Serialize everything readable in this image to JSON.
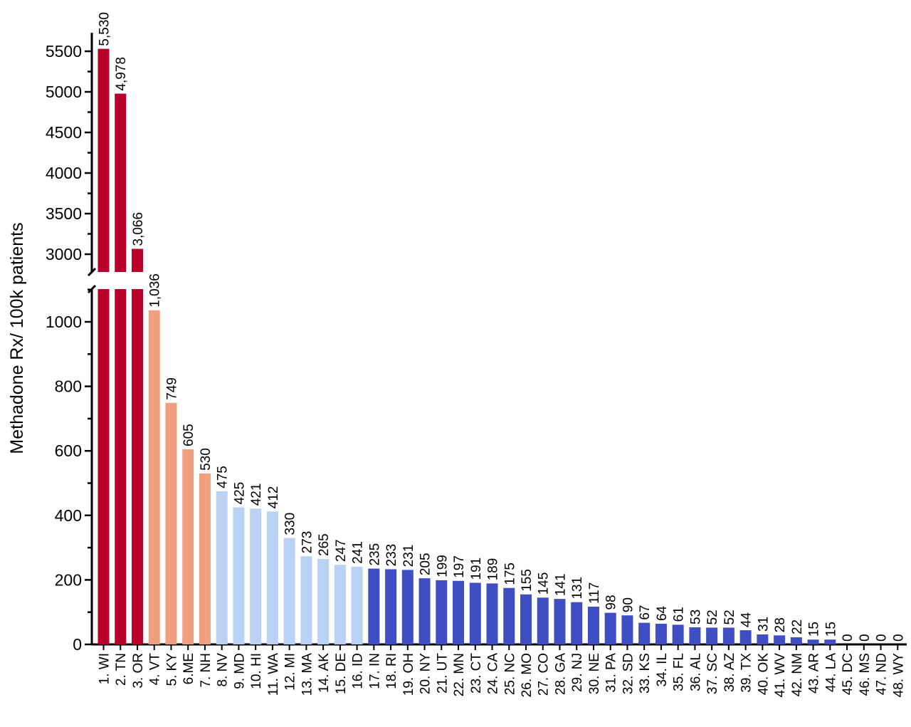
{
  "chart_data": {
    "type": "bar",
    "title": "",
    "xlabel": "",
    "ylabel": "Methadone Rx/ 100k patients",
    "broken_axis": true,
    "ylim_lower": [
      0,
      1100
    ],
    "ylim_upper": [
      2850,
      5650
    ],
    "yticks_lower": [
      0,
      200,
      400,
      600,
      800,
      1000
    ],
    "yticks_upper": [
      3000,
      3500,
      4000,
      4500,
      5000,
      5500
    ],
    "grid": false,
    "categories": [
      "1. WI",
      "2. TN",
      "3. OR",
      "4. VT",
      "5. KY",
      "6.ME",
      "7. NH",
      "8. NV",
      "9. MD",
      "10. HI",
      "11. WA",
      "12. MI",
      "13. MA",
      "14. AK",
      "15. DE",
      "16. ID",
      "17. IN",
      "18. RI",
      "19. OH",
      "20. NY",
      "21. UT",
      "22. MN",
      "23. CT",
      "24. CA",
      "25. NC",
      "26. MO",
      "27. CO",
      "28. GA",
      "29. NJ",
      "30. NE",
      "31. PA",
      "32. SD",
      "33. KS",
      "34. IL",
      "35. FL",
      "36. AL",
      "37. SC",
      "38. AZ",
      "39. TX",
      "40. OK",
      "41. WV",
      "42. NM",
      "43. AR",
      "44. LA",
      "45. DC",
      "46. MS",
      "47. ND",
      "48. WY"
    ],
    "values": [
      5530,
      4978,
      3066,
      1036,
      749,
      605,
      530,
      475,
      425,
      421,
      412,
      330,
      273,
      265,
      247,
      241,
      235,
      233,
      231,
      205,
      199,
      197,
      191,
      189,
      175,
      155,
      145,
      141,
      131,
      117,
      98,
      90,
      67,
      64,
      61,
      53,
      52,
      52,
      44,
      31,
      28,
      22,
      15,
      15,
      0,
      0,
      0,
      0
    ],
    "labels": [
      "5,530",
      "4,978",
      "3,066",
      "1,036",
      "749",
      "605",
      "530",
      "475",
      "425",
      "421",
      "412",
      "330",
      "273",
      "265",
      "247",
      "241",
      "235",
      "233",
      "231",
      "205",
      "199",
      "197",
      "191",
      "189",
      "175",
      "155",
      "145",
      "141",
      "131",
      "117",
      "98",
      "90",
      "67",
      "64",
      "61",
      "53",
      "52",
      "52",
      "44",
      "31",
      "28",
      "22",
      "15",
      "15",
      "0",
      "0",
      "0",
      "0"
    ],
    "colors": {
      "tier1": "#B8002A",
      "tier2": "#F0A080",
      "tier3": "#B9D1F3",
      "tier4": "#3F4FC3"
    },
    "tiers": [
      1,
      1,
      1,
      2,
      2,
      2,
      2,
      3,
      3,
      3,
      3,
      3,
      3,
      3,
      3,
      3,
      4,
      4,
      4,
      4,
      4,
      4,
      4,
      4,
      4,
      4,
      4,
      4,
      4,
      4,
      4,
      4,
      4,
      4,
      4,
      4,
      4,
      4,
      4,
      4,
      4,
      4,
      4,
      4,
      4,
      4,
      4,
      4
    ]
  }
}
